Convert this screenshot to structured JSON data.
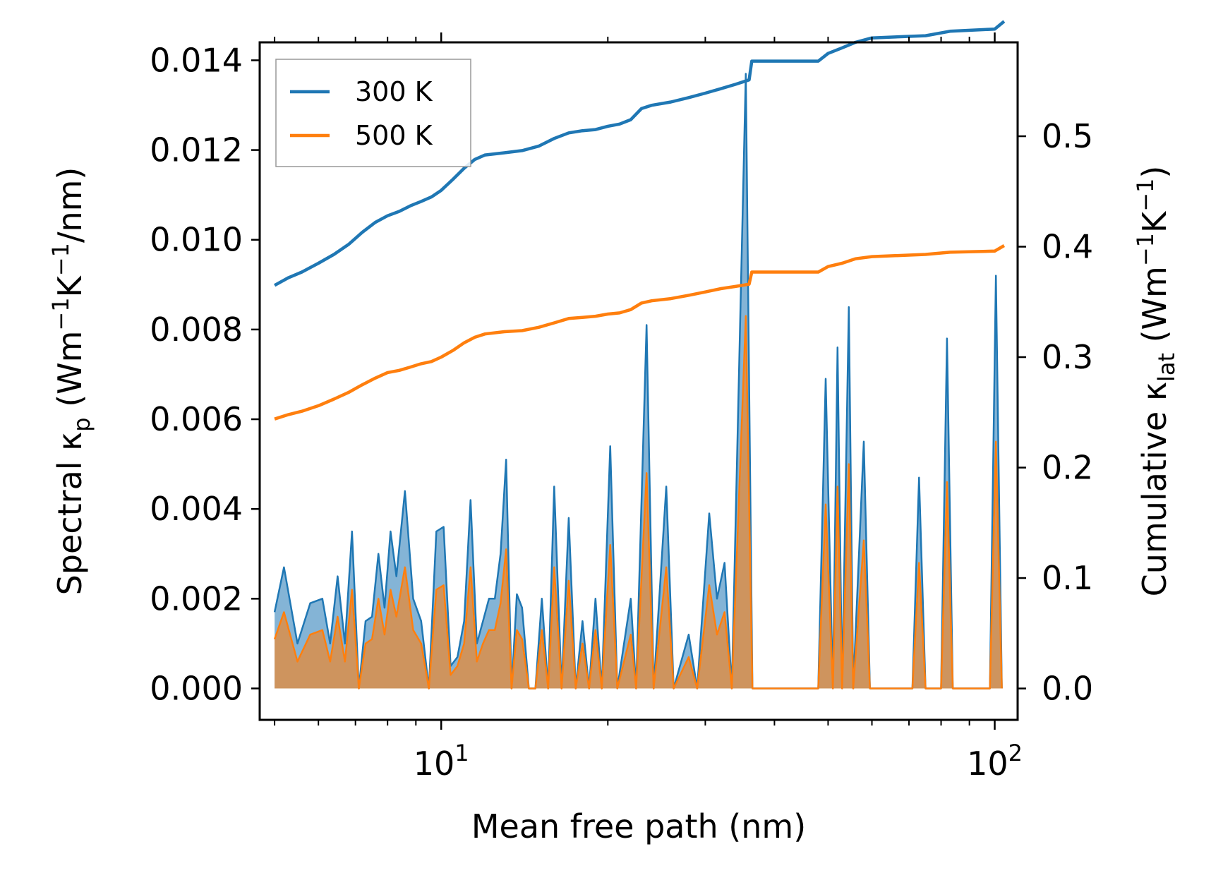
{
  "chart_data": {
    "type": "line",
    "title": "",
    "xlabel": "Mean free path (nm)",
    "xscale": "log",
    "xlim": [
      4.7,
      110
    ],
    "x_ticks": [
      {
        "value": 10,
        "base": "10",
        "exp": "1"
      },
      {
        "value": 100,
        "base": "10",
        "exp": "2"
      }
    ],
    "left_axis": {
      "label_prefix": "Spectral κ",
      "label_sub": "p",
      "label_suffix_parts": [
        {
          "t": " (Wm",
          "s": "base"
        },
        {
          "t": "−1",
          "s": "sup"
        },
        {
          "t": "K",
          "s": "base"
        },
        {
          "t": "−1",
          "s": "sup"
        },
        {
          "t": "/nm)",
          "s": "base"
        }
      ],
      "ylim": [
        -0.0007,
        0.0144
      ],
      "ticks": [
        0.0,
        0.002,
        0.004,
        0.006,
        0.008,
        0.01,
        0.012,
        0.014
      ],
      "tick_labels": [
        "0.000",
        "0.002",
        "0.004",
        "0.006",
        "0.008",
        "0.010",
        "0.012",
        "0.014"
      ]
    },
    "right_axis": {
      "label_prefix": "Cumulative κ",
      "label_sub": "lat",
      "label_suffix_parts": [
        {
          "t": " (Wm",
          "s": "base"
        },
        {
          "t": "−1",
          "s": "sup"
        },
        {
          "t": "K",
          "s": "base"
        },
        {
          "t": "−1",
          "s": "sup"
        },
        {
          "t": ")",
          "s": "base"
        }
      ],
      "ylim": [
        -0.0284,
        0.585
      ],
      "ticks": [
        0.0,
        0.1,
        0.2,
        0.3,
        0.4,
        0.5
      ],
      "tick_labels": [
        "0.0",
        "0.1",
        "0.2",
        "0.3",
        "0.4",
        "0.5"
      ]
    },
    "legend": {
      "position": "upper-left",
      "entries": [
        {
          "label": "300 K",
          "color": "#1f77b4"
        },
        {
          "label": "500 K",
          "color": "#ff7f0e"
        }
      ]
    },
    "series": [
      {
        "name": "300 K",
        "color": "#1f77b4",
        "cumulative": [
          [
            5.0,
            0.365
          ],
          [
            5.3,
            0.372
          ],
          [
            5.6,
            0.377
          ],
          [
            6.0,
            0.385
          ],
          [
            6.4,
            0.393
          ],
          [
            6.8,
            0.402
          ],
          [
            7.2,
            0.413
          ],
          [
            7.6,
            0.422
          ],
          [
            8.0,
            0.428
          ],
          [
            8.4,
            0.432
          ],
          [
            8.8,
            0.437
          ],
          [
            9.2,
            0.441
          ],
          [
            9.6,
            0.445
          ],
          [
            10.0,
            0.451
          ],
          [
            10.5,
            0.461
          ],
          [
            11.0,
            0.471
          ],
          [
            11.5,
            0.479
          ],
          [
            12.0,
            0.483
          ],
          [
            13.0,
            0.485
          ],
          [
            14.0,
            0.487
          ],
          [
            15.0,
            0.491
          ],
          [
            16.0,
            0.498
          ],
          [
            17.0,
            0.503
          ],
          [
            18.0,
            0.505
          ],
          [
            19.0,
            0.506
          ],
          [
            20.0,
            0.509
          ],
          [
            21.0,
            0.511
          ],
          [
            22.0,
            0.515
          ],
          [
            23.0,
            0.525
          ],
          [
            24.0,
            0.528
          ],
          [
            26.0,
            0.531
          ],
          [
            28.0,
            0.535
          ],
          [
            30.0,
            0.539
          ],
          [
            32.0,
            0.543
          ],
          [
            34.0,
            0.547
          ],
          [
            36.0,
            0.551
          ],
          [
            36.4,
            0.568
          ],
          [
            48.0,
            0.568
          ],
          [
            50.0,
            0.575
          ],
          [
            53.0,
            0.58
          ],
          [
            56.0,
            0.585
          ],
          [
            60.0,
            0.589
          ],
          [
            75.0,
            0.591
          ],
          [
            83.0,
            0.595
          ],
          [
            100.0,
            0.597
          ],
          [
            104.0,
            0.604
          ]
        ],
        "spectral": [
          [
            5.0,
            0.0017
          ],
          [
            5.2,
            0.0027
          ],
          [
            5.5,
            0.001
          ],
          [
            5.8,
            0.0019
          ],
          [
            6.1,
            0.002
          ],
          [
            6.3,
            0.001
          ],
          [
            6.5,
            0.0025
          ],
          [
            6.7,
            0.001
          ],
          [
            6.9,
            0.0035
          ],
          [
            7.1,
            0.0
          ],
          [
            7.3,
            0.0015
          ],
          [
            7.5,
            0.0016
          ],
          [
            7.7,
            0.003
          ],
          [
            7.9,
            0.0018
          ],
          [
            8.1,
            0.0035
          ],
          [
            8.3,
            0.0025
          ],
          [
            8.6,
            0.0044
          ],
          [
            8.9,
            0.002
          ],
          [
            9.2,
            0.0015
          ],
          [
            9.5,
            0.0
          ],
          [
            9.8,
            0.0035
          ],
          [
            10.1,
            0.0036
          ],
          [
            10.4,
            0.0005
          ],
          [
            10.7,
            0.0007
          ],
          [
            11.0,
            0.0015
          ],
          [
            11.3,
            0.0042
          ],
          [
            11.6,
            0.001
          ],
          [
            11.9,
            0.0015
          ],
          [
            12.2,
            0.002
          ],
          [
            12.5,
            0.002
          ],
          [
            12.8,
            0.003
          ],
          [
            13.1,
            0.0051
          ],
          [
            13.4,
            0.0
          ],
          [
            13.7,
            0.0021
          ],
          [
            14.0,
            0.0018
          ],
          [
            14.4,
            0.0
          ],
          [
            14.8,
            0.0
          ],
          [
            15.2,
            0.002
          ],
          [
            15.6,
            0.0
          ],
          [
            16.0,
            0.0045
          ],
          [
            16.5,
            0.0
          ],
          [
            17.0,
            0.0038
          ],
          [
            17.5,
            0.0
          ],
          [
            18.0,
            0.0015
          ],
          [
            18.5,
            0.0
          ],
          [
            19.0,
            0.002
          ],
          [
            19.5,
            0.0
          ],
          [
            20.2,
            0.0054
          ],
          [
            20.8,
            0.0
          ],
          [
            22.0,
            0.002
          ],
          [
            22.5,
            0.0
          ],
          [
            23.5,
            0.0081
          ],
          [
            24.2,
            0.0
          ],
          [
            25.5,
            0.0045
          ],
          [
            26.3,
            0.0
          ],
          [
            28.0,
            0.0012
          ],
          [
            29.0,
            0.0
          ],
          [
            30.5,
            0.0039
          ],
          [
            31.5,
            0.002
          ],
          [
            32.5,
            0.0028
          ],
          [
            33.5,
            0.0
          ],
          [
            35.5,
            0.0137
          ],
          [
            36.5,
            0.0
          ],
          [
            48.0,
            0.0
          ],
          [
            49.5,
            0.0069
          ],
          [
            51.0,
            0.0
          ],
          [
            52.0,
            0.0076
          ],
          [
            53.0,
            0.0
          ],
          [
            54.5,
            0.0085
          ],
          [
            55.5,
            0.0
          ],
          [
            58.0,
            0.0055
          ],
          [
            59.5,
            0.0
          ],
          [
            71.0,
            0.0
          ],
          [
            73.0,
            0.0047
          ],
          [
            75.0,
            0.0
          ],
          [
            80.0,
            0.0
          ],
          [
            82.0,
            0.0078
          ],
          [
            84.0,
            0.0
          ],
          [
            98.0,
            0.0
          ],
          [
            100.5,
            0.0092
          ],
          [
            103.0,
            0.0
          ]
        ]
      },
      {
        "name": "500 K",
        "color": "#ff7f0e",
        "cumulative": [
          [
            5.0,
            0.244
          ],
          [
            5.3,
            0.248
          ],
          [
            5.6,
            0.251
          ],
          [
            6.0,
            0.256
          ],
          [
            6.4,
            0.262
          ],
          [
            6.8,
            0.268
          ],
          [
            7.2,
            0.275
          ],
          [
            7.6,
            0.281
          ],
          [
            8.0,
            0.286
          ],
          [
            8.4,
            0.288
          ],
          [
            8.8,
            0.291
          ],
          [
            9.2,
            0.294
          ],
          [
            9.6,
            0.296
          ],
          [
            10.0,
            0.3
          ],
          [
            10.5,
            0.306
          ],
          [
            11.0,
            0.313
          ],
          [
            11.5,
            0.318
          ],
          [
            12.0,
            0.321
          ],
          [
            13.0,
            0.323
          ],
          [
            14.0,
            0.324
          ],
          [
            15.0,
            0.327
          ],
          [
            16.0,
            0.331
          ],
          [
            17.0,
            0.335
          ],
          [
            18.0,
            0.336
          ],
          [
            19.0,
            0.337
          ],
          [
            20.0,
            0.339
          ],
          [
            21.0,
            0.34
          ],
          [
            22.0,
            0.343
          ],
          [
            23.0,
            0.349
          ],
          [
            24.0,
            0.351
          ],
          [
            26.0,
            0.353
          ],
          [
            28.0,
            0.356
          ],
          [
            30.0,
            0.359
          ],
          [
            32.0,
            0.362
          ],
          [
            34.0,
            0.364
          ],
          [
            36.0,
            0.366
          ],
          [
            36.4,
            0.377
          ],
          [
            48.0,
            0.377
          ],
          [
            50.0,
            0.382
          ],
          [
            53.0,
            0.385
          ],
          [
            56.0,
            0.389
          ],
          [
            60.0,
            0.391
          ],
          [
            75.0,
            0.393
          ],
          [
            83.0,
            0.395
          ],
          [
            100.0,
            0.396
          ],
          [
            104.0,
            0.401
          ]
        ],
        "spectral": [
          [
            5.0,
            0.0011
          ],
          [
            5.2,
            0.0017
          ],
          [
            5.5,
            0.0006
          ],
          [
            5.8,
            0.0012
          ],
          [
            6.1,
            0.0013
          ],
          [
            6.3,
            0.0006
          ],
          [
            6.5,
            0.0016
          ],
          [
            6.7,
            0.0006
          ],
          [
            6.9,
            0.0022
          ],
          [
            7.1,
            0.0
          ],
          [
            7.3,
            0.001
          ],
          [
            7.5,
            0.0011
          ],
          [
            7.7,
            0.002
          ],
          [
            7.9,
            0.0012
          ],
          [
            8.1,
            0.0022
          ],
          [
            8.3,
            0.0016
          ],
          [
            8.6,
            0.0027
          ],
          [
            8.9,
            0.0013
          ],
          [
            9.2,
            0.001
          ],
          [
            9.5,
            0.0
          ],
          [
            9.8,
            0.0022
          ],
          [
            10.1,
            0.0023
          ],
          [
            10.4,
            0.0003
          ],
          [
            10.7,
            0.0005
          ],
          [
            11.0,
            0.001
          ],
          [
            11.3,
            0.0027
          ],
          [
            11.6,
            0.0006
          ],
          [
            11.9,
            0.001
          ],
          [
            12.2,
            0.0013
          ],
          [
            12.5,
            0.0013
          ],
          [
            12.8,
            0.0019
          ],
          [
            13.1,
            0.0031
          ],
          [
            13.4,
            0.0
          ],
          [
            13.7,
            0.0013
          ],
          [
            14.0,
            0.0011
          ],
          [
            14.4,
            0.0
          ],
          [
            14.8,
            0.0
          ],
          [
            15.2,
            0.0013
          ],
          [
            15.6,
            0.0
          ],
          [
            16.0,
            0.0027
          ],
          [
            16.5,
            0.0
          ],
          [
            17.0,
            0.0024
          ],
          [
            17.5,
            0.0
          ],
          [
            18.0,
            0.001
          ],
          [
            18.5,
            0.0
          ],
          [
            19.0,
            0.0013
          ],
          [
            19.5,
            0.0
          ],
          [
            20.2,
            0.0032
          ],
          [
            20.8,
            0.0
          ],
          [
            22.0,
            0.0012
          ],
          [
            22.5,
            0.0
          ],
          [
            23.5,
            0.0048
          ],
          [
            24.2,
            0.0
          ],
          [
            25.5,
            0.0027
          ],
          [
            26.3,
            0.0
          ],
          [
            28.0,
            0.0007
          ],
          [
            29.0,
            0.0
          ],
          [
            30.5,
            0.0023
          ],
          [
            31.5,
            0.0012
          ],
          [
            32.5,
            0.0017
          ],
          [
            33.5,
            0.0
          ],
          [
            35.5,
            0.0083
          ],
          [
            36.5,
            0.0
          ],
          [
            48.0,
            0.0
          ],
          [
            49.5,
            0.0041
          ],
          [
            51.0,
            0.0
          ],
          [
            52.0,
            0.0045
          ],
          [
            53.0,
            0.0
          ],
          [
            54.5,
            0.005
          ],
          [
            55.5,
            0.0
          ],
          [
            58.0,
            0.0033
          ],
          [
            59.5,
            0.0
          ],
          [
            71.0,
            0.0
          ],
          [
            73.0,
            0.0028
          ],
          [
            75.0,
            0.0
          ],
          [
            80.0,
            0.0
          ],
          [
            82.0,
            0.0046
          ],
          [
            84.0,
            0.0
          ],
          [
            98.0,
            0.0
          ],
          [
            100.5,
            0.0055
          ],
          [
            103.0,
            0.0
          ]
        ]
      }
    ]
  }
}
